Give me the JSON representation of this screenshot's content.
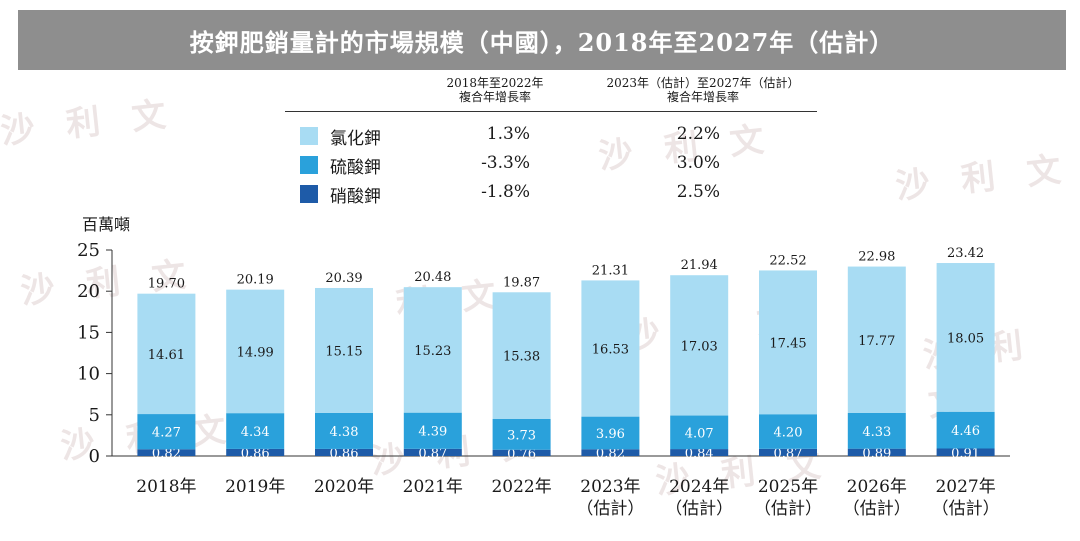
{
  "title": "按鉀肥銷量計的市場規模（中國），2018年至2027年（估計）",
  "legend": {
    "header_col1": [
      "2018年至2022年",
      "複合年增長率"
    ],
    "header_col2": [
      "2023年（估計）至2027年（估計）",
      "複合年增長率"
    ],
    "rows": [
      {
        "name": "氯化鉀",
        "cagr1": "1.3%",
        "cagr2": "2.2%",
        "color": "#a8dcf3"
      },
      {
        "name": "硫酸鉀",
        "cagr1": "-3.3%",
        "cagr2": "3.0%",
        "color": "#2aa1db"
      },
      {
        "name": "硝酸鉀",
        "cagr1": "-1.8%",
        "cagr2": "2.5%",
        "color": "#1e5ba8"
      }
    ]
  },
  "watermark": "沙 利 文",
  "chart_data": {
    "type": "bar",
    "stacked": true,
    "ylabel": "百萬噸",
    "ylim": [
      0,
      25
    ],
    "yticks": [
      "0",
      "5",
      "10",
      "15",
      "20",
      "25"
    ],
    "categories": [
      [
        "2018年"
      ],
      [
        "2019年"
      ],
      [
        "2020年"
      ],
      [
        "2021年"
      ],
      [
        "2022年"
      ],
      [
        "2023年",
        "（估計）"
      ],
      [
        "2024年",
        "（估計）"
      ],
      [
        "2025年",
        "（估計）"
      ],
      [
        "2026年",
        "（估計）"
      ],
      [
        "2027年",
        "（估計）"
      ]
    ],
    "series": [
      {
        "name": "硝酸鉀",
        "color": "#1e5ba8",
        "values": [
          0.82,
          0.86,
          0.86,
          0.87,
          0.76,
          0.82,
          0.84,
          0.87,
          0.89,
          0.91
        ]
      },
      {
        "name": "硫酸鉀",
        "color": "#2aa1db",
        "values": [
          4.27,
          4.34,
          4.38,
          4.39,
          3.73,
          3.96,
          4.07,
          4.2,
          4.33,
          4.46
        ]
      },
      {
        "name": "氯化鉀",
        "color": "#a8dcf3",
        "values": [
          14.61,
          14.99,
          15.15,
          15.23,
          15.38,
          16.53,
          17.03,
          17.45,
          17.77,
          18.05
        ]
      }
    ],
    "labels": {
      "硝酸鉀": [
        "0.82",
        "0.86",
        "0.86",
        "0.87",
        "0.76",
        "0.82",
        "0.84",
        "0.87",
        "0.89",
        "0.91"
      ],
      "硫酸鉀": [
        "4.27",
        "4.34",
        "4.38",
        "4.39",
        "3.73",
        "3.96",
        "4.07",
        "4.20",
        "4.33",
        "4.46"
      ],
      "氯化鉀": [
        "14.61",
        "14.99",
        "15.15",
        "15.23",
        "15.38",
        "16.53",
        "17.03",
        "17.45",
        "17.77",
        "18.05"
      ]
    },
    "totals": [
      19.7,
      20.19,
      20.39,
      20.48,
      19.87,
      21.31,
      21.94,
      22.52,
      22.98,
      23.42
    ],
    "total_labels": [
      "19.70",
      "20.19",
      "20.39",
      "20.48",
      "19.87",
      "21.31",
      "21.94",
      "22.52",
      "22.98",
      "23.42"
    ]
  }
}
